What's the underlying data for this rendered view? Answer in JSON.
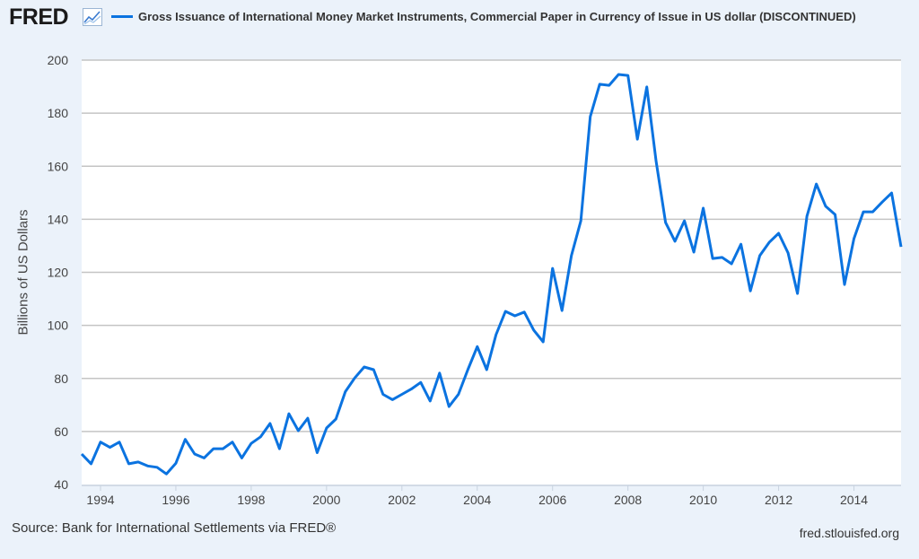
{
  "header": {
    "logo": "FRED",
    "logo_icon": "line-chart-icon"
  },
  "footer": {
    "source": "Source: Bank for International Settlements via FRED®",
    "site": "fred.stlouisfed.org"
  },
  "colors": {
    "line": "#0b73e0",
    "background": "#ebf2fa",
    "plot": "#ffffff",
    "grid": "#c4c4c4"
  },
  "chart_data": {
    "type": "line",
    "title": "",
    "xlabel": "",
    "ylabel": "Billions of US Dollars",
    "ylim": [
      40,
      200
    ],
    "yticks": [
      40,
      60,
      80,
      100,
      120,
      140,
      160,
      180,
      200
    ],
    "xticks": [
      "1994",
      "1996",
      "1998",
      "2000",
      "2002",
      "2004",
      "2006",
      "2008",
      "2010",
      "2012",
      "2014"
    ],
    "grid": true,
    "legend_position": "top",
    "frequency": "quarterly",
    "series": [
      {
        "name": "Gross Issuance of International Money Market Instruments, Commercial Paper in Currency of Issue in US dollar (DISCONTINUED)",
        "start": "1993-07-01",
        "values": [
          51.5,
          47.8,
          56,
          54,
          56,
          47.8,
          48.5,
          47,
          46.5,
          44,
          48,
          57,
          51.5,
          50,
          53.5,
          53.5,
          56,
          50,
          55.5,
          58,
          63,
          53.5,
          66.7,
          60.3,
          65,
          52,
          61.3,
          64.7,
          75,
          80.2,
          84.3,
          83.3,
          74,
          72,
          74,
          76,
          78.5,
          71.5,
          82,
          69.4,
          74,
          83.3,
          92,
          83.3,
          96.5,
          105.3,
          103.6,
          105,
          98.2,
          93.8,
          121.5,
          105.6,
          126.3,
          139.4,
          178.7,
          190.9,
          190.5,
          194.6,
          194.2,
          170.2,
          189.9,
          161.8,
          138.8,
          131.7,
          139.4,
          127.6,
          144.2,
          125.2,
          125.6,
          123.2,
          130.6,
          113,
          126.3,
          131.3,
          134.7,
          127.3,
          112,
          141.1,
          153.3,
          144.9,
          141.8,
          115.4,
          132.7,
          142.8,
          142.8,
          146.5,
          149.9,
          129.6
        ]
      }
    ]
  }
}
